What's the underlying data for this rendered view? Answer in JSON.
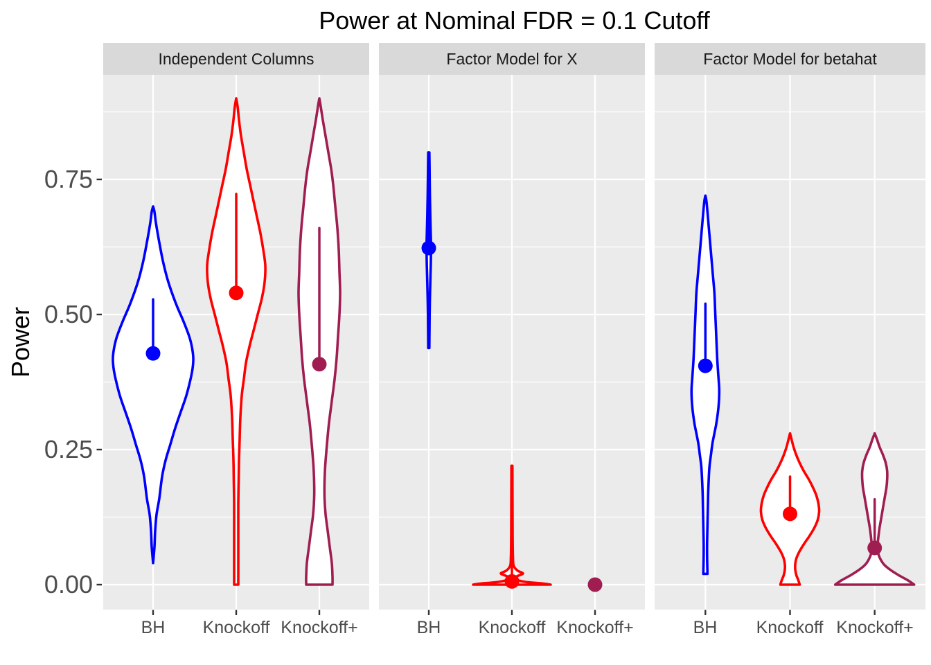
{
  "title": "Power at Nominal FDR = 0.1 Cutoff",
  "y_axis": {
    "title": "Power",
    "ticks": [
      {
        "label": "0.00",
        "value": 0.0
      },
      {
        "label": "0.25",
        "value": 0.25
      },
      {
        "label": "0.50",
        "value": 0.5
      },
      {
        "label": "0.75",
        "value": 0.75
      }
    ]
  },
  "chart_data": {
    "type": "violin",
    "title": "Power at Nominal FDR = 0.1 Cutoff",
    "ylabel": "Power",
    "xlabel": "",
    "ylim": [
      -0.045,
      0.945
    ],
    "grid": "on",
    "y_major_gridlines": [
      0.0,
      0.25,
      0.5,
      0.75
    ],
    "y_minor_gridlines": [
      0.125,
      0.375,
      0.625,
      0.875
    ],
    "categories": [
      "BH",
      "Knockoff",
      "Knockoff+"
    ],
    "colors": {
      "BH": "#0000FF",
      "Knockoff": "#FF0000",
      "Knockoff+": "#A01D52"
    },
    "panel_bg_color": "#EBEBEB",
    "strip_bg_color": "#D9D9D9",
    "facets": [
      {
        "label": "Independent Columns",
        "violins": [
          {
            "category": "BH",
            "min": 0.04,
            "max": 0.7,
            "mean": 0.428,
            "range_hi": 0.528,
            "profile": [
              [
                0.7,
                0
              ],
              [
                0.69,
                2
              ],
              [
                0.67,
                4
              ],
              [
                0.64,
                8
              ],
              [
                0.6,
                14
              ],
              [
                0.56,
                22
              ],
              [
                0.52,
                33
              ],
              [
                0.49,
                43
              ],
              [
                0.46,
                52
              ],
              [
                0.44,
                56
              ],
              [
                0.42,
                58
              ],
              [
                0.4,
                57
              ],
              [
                0.38,
                54
              ],
              [
                0.35,
                48
              ],
              [
                0.32,
                40
              ],
              [
                0.29,
                32
              ],
              [
                0.26,
                25
              ],
              [
                0.23,
                18
              ],
              [
                0.2,
                13
              ],
              [
                0.16,
                9
              ],
              [
                0.13,
                5
              ],
              [
                0.1,
                3
              ],
              [
                0.07,
                2
              ],
              [
                0.04,
                0
              ]
            ]
          },
          {
            "category": "Knockoff",
            "min": 0.0,
            "max": 0.9,
            "mean": 0.54,
            "range_hi": 0.723,
            "profile": [
              [
                0.9,
                0
              ],
              [
                0.885,
                2
              ],
              [
                0.86,
                4
              ],
              [
                0.83,
                7
              ],
              [
                0.8,
                11
              ],
              [
                0.77,
                15
              ],
              [
                0.74,
                20
              ],
              [
                0.71,
                25
              ],
              [
                0.68,
                30
              ],
              [
                0.65,
                35
              ],
              [
                0.62,
                39
              ],
              [
                0.59,
                42
              ],
              [
                0.56,
                41
              ],
              [
                0.53,
                37
              ],
              [
                0.5,
                31
              ],
              [
                0.47,
                25
              ],
              [
                0.44,
                19
              ],
              [
                0.41,
                14
              ],
              [
                0.38,
                11
              ],
              [
                0.35,
                8
              ],
              [
                0.31,
                6
              ],
              [
                0.27,
                5
              ],
              [
                0.23,
                4
              ],
              [
                0.19,
                3.5
              ],
              [
                0.15,
                3
              ],
              [
                0.1,
                3
              ],
              [
                0.05,
                3
              ],
              [
                0.0,
                3
              ]
            ]
          },
          {
            "category": "Knockoff+",
            "min": 0.0,
            "max": 0.9,
            "mean": 0.408,
            "range_hi": 0.66,
            "profile": [
              [
                0.9,
                0
              ],
              [
                0.885,
                2
              ],
              [
                0.86,
                5
              ],
              [
                0.83,
                9
              ],
              [
                0.8,
                13
              ],
              [
                0.77,
                17
              ],
              [
                0.74,
                20
              ],
              [
                0.7,
                23
              ],
              [
                0.66,
                26
              ],
              [
                0.62,
                28
              ],
              [
                0.58,
                29
              ],
              [
                0.54,
                30
              ],
              [
                0.5,
                29
              ],
              [
                0.46,
                27
              ],
              [
                0.42,
                25
              ],
              [
                0.38,
                22
              ],
              [
                0.34,
                18
              ],
              [
                0.3,
                14
              ],
              [
                0.26,
                11
              ],
              [
                0.22,
                8.5
              ],
              [
                0.19,
                7.5
              ],
              [
                0.16,
                7.5
              ],
              [
                0.13,
                9
              ],
              [
                0.1,
                12
              ],
              [
                0.07,
                15
              ],
              [
                0.04,
                18
              ],
              [
                0.015,
                19
              ],
              [
                0.0,
                19
              ]
            ]
          }
        ]
      },
      {
        "label": "Factor Model for X",
        "violins": [
          {
            "category": "BH",
            "min": 0.438,
            "max": 0.8,
            "mean": 0.623,
            "range_hi": 0.8,
            "profile": [
              [
                0.8,
                0.8
              ],
              [
                0.76,
                1.2
              ],
              [
                0.72,
                1.6
              ],
              [
                0.68,
                2.2
              ],
              [
                0.65,
                2.8
              ],
              [
                0.625,
                3.2
              ],
              [
                0.6,
                3.0
              ],
              [
                0.57,
                2.4
              ],
              [
                0.54,
                1.8
              ],
              [
                0.5,
                1.2
              ],
              [
                0.47,
                1.0
              ],
              [
                0.438,
                0.8
              ]
            ]
          },
          {
            "category": "Knockoff",
            "min": 0.0,
            "max": 0.22,
            "mean": 0.006,
            "range_hi": 0.22,
            "profile": [
              [
                0.22,
                0.7
              ],
              [
                0.18,
                0.8
              ],
              [
                0.14,
                0.9
              ],
              [
                0.1,
                1.0
              ],
              [
                0.07,
                1.2
              ],
              [
                0.05,
                1.5
              ],
              [
                0.035,
                2.5
              ],
              [
                0.026,
                8
              ],
              [
                0.021,
                16
              ],
              [
                0.017,
                10
              ],
              [
                0.013,
                4
              ],
              [
                0.009,
                6
              ],
              [
                0.005,
                20
              ],
              [
                0.002,
                45
              ],
              [
                0.0,
                56
              ]
            ]
          },
          {
            "category": "Knockoff+",
            "min": 0.0,
            "max": 0.0,
            "mean": 0.0,
            "range_hi": null,
            "profile": null
          }
        ]
      },
      {
        "label": "Factor Model for betahat",
        "violins": [
          {
            "category": "BH",
            "min": 0.02,
            "max": 0.72,
            "mean": 0.405,
            "range_hi": 0.52,
            "profile": [
              [
                0.72,
                0
              ],
              [
                0.71,
                1.5
              ],
              [
                0.69,
                3
              ],
              [
                0.66,
                5
              ],
              [
                0.63,
                7
              ],
              [
                0.6,
                9
              ],
              [
                0.57,
                11
              ],
              [
                0.54,
                13
              ],
              [
                0.51,
                14
              ],
              [
                0.48,
                15
              ],
              [
                0.45,
                16
              ],
              [
                0.42,
                17
              ],
              [
                0.39,
                18.5
              ],
              [
                0.36,
                20
              ],
              [
                0.33,
                19
              ],
              [
                0.3,
                16
              ],
              [
                0.28,
                13
              ],
              [
                0.26,
                10
              ],
              [
                0.24,
                8
              ],
              [
                0.22,
                6
              ],
              [
                0.2,
                5
              ],
              [
                0.17,
                4
              ],
              [
                0.14,
                3.5
              ],
              [
                0.11,
                3
              ],
              [
                0.08,
                2.5
              ],
              [
                0.05,
                2.5
              ],
              [
                0.02,
                3
              ]
            ]
          },
          {
            "category": "Knockoff",
            "min": 0.0,
            "max": 0.28,
            "mean": 0.131,
            "range_hi": 0.2,
            "profile": [
              [
                0.28,
                0
              ],
              [
                0.27,
                2
              ],
              [
                0.255,
                5
              ],
              [
                0.24,
                9
              ],
              [
                0.225,
                14
              ],
              [
                0.21,
                20
              ],
              [
                0.195,
                27
              ],
              [
                0.18,
                33
              ],
              [
                0.165,
                38
              ],
              [
                0.15,
                41
              ],
              [
                0.135,
                42
              ],
              [
                0.12,
                40
              ],
              [
                0.105,
                35
              ],
              [
                0.09,
                28
              ],
              [
                0.075,
                20
              ],
              [
                0.06,
                13
              ],
              [
                0.048,
                9
              ],
              [
                0.038,
                7.5
              ],
              [
                0.028,
                7.5
              ],
              [
                0.018,
                9
              ],
              [
                0.008,
                12
              ],
              [
                0.0,
                14
              ]
            ]
          },
          {
            "category": "Knockoff+",
            "min": 0.0,
            "max": 0.28,
            "mean": 0.068,
            "range_hi": 0.158,
            "profile": [
              [
                0.28,
                0
              ],
              [
                0.27,
                3
              ],
              [
                0.255,
                7
              ],
              [
                0.24,
                12
              ],
              [
                0.225,
                16
              ],
              [
                0.21,
                18
              ],
              [
                0.195,
                18
              ],
              [
                0.18,
                17
              ],
              [
                0.165,
                15
              ],
              [
                0.15,
                13
              ],
              [
                0.135,
                11
              ],
              [
                0.12,
                9
              ],
              [
                0.105,
                7
              ],
              [
                0.09,
                5.5
              ],
              [
                0.078,
                4.5
              ],
              [
                0.068,
                4
              ],
              [
                0.058,
                5
              ],
              [
                0.048,
                8
              ],
              [
                0.038,
                13
              ],
              [
                0.028,
                22
              ],
              [
                0.018,
                34
              ],
              [
                0.008,
                48
              ],
              [
                0.0,
                57
              ]
            ]
          }
        ]
      }
    ]
  }
}
